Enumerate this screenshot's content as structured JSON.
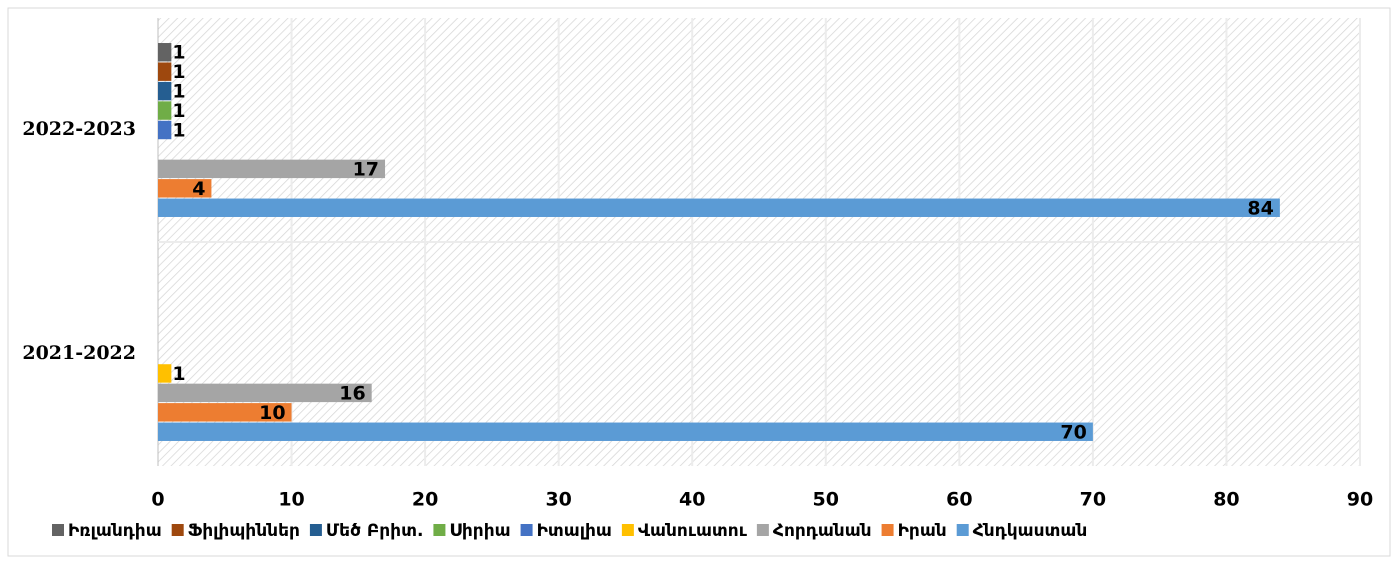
{
  "chart_data": {
    "type": "hbar",
    "categories": [
      "2021-2022",
      "2022-2023"
    ],
    "series": [
      {
        "name": "Իռլանդիա",
        "color": "#636363",
        "values": [
          null,
          1
        ]
      },
      {
        "name": "Ֆիլիպիններ",
        "color": "#9e480e",
        "values": [
          null,
          1
        ]
      },
      {
        "name": "Մեծ Բրիտ.",
        "color": "#255e91",
        "values": [
          null,
          1
        ]
      },
      {
        "name": "Սիրիա",
        "color": "#70ad47",
        "values": [
          null,
          1
        ]
      },
      {
        "name": "Իտալիա",
        "color": "#4472c4",
        "values": [
          null,
          1
        ]
      },
      {
        "name": "Վանուատու",
        "color": "#ffc000",
        "values": [
          1,
          null
        ]
      },
      {
        "name": "Հորդանան",
        "color": "#a5a5a5",
        "values": [
          16,
          17
        ]
      },
      {
        "name": "Իրան",
        "color": "#ed7d31",
        "values": [
          10,
          4
        ]
      },
      {
        "name": "Հնդկաստան",
        "color": "#5b9bd5",
        "values": [
          70,
          84
        ]
      }
    ],
    "xlim": [
      0,
      90
    ],
    "xticks": [
      0,
      10,
      20,
      30,
      40,
      50,
      60,
      70,
      80,
      90
    ],
    "grid": true,
    "legend": "bottom"
  }
}
